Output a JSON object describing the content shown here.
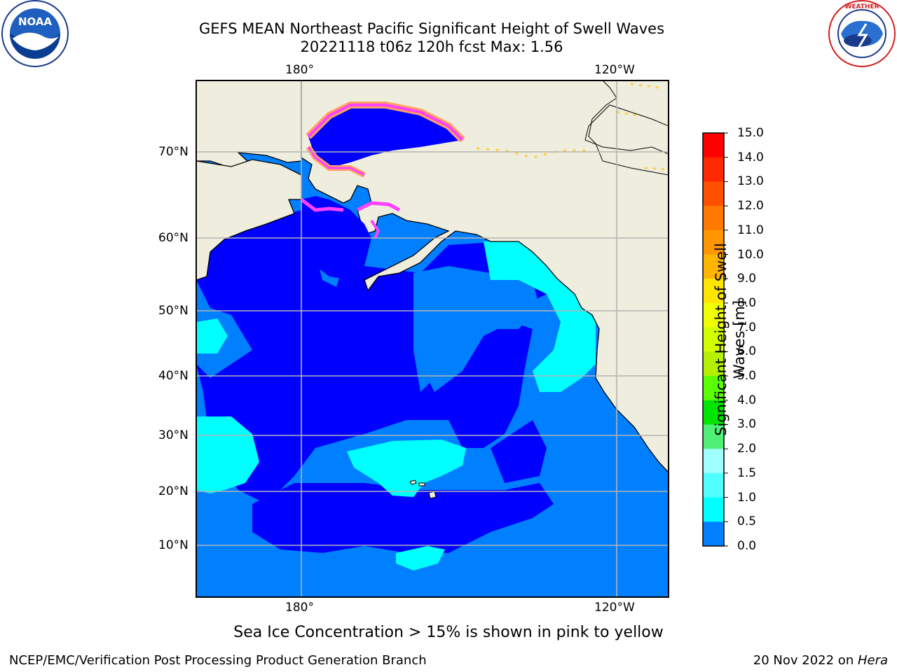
{
  "header": {
    "title_line1": "GEFS MEAN Northeast Pacific Significant Height of Swell Waves",
    "title_line2": "20221118 t06z 120h fcst   Max: 1.56"
  },
  "logos": {
    "left": {
      "name": "noaa-logo",
      "text": "NOAA",
      "ring_text": "NATIONAL OCEANIC AND ATMOSPHERIC ADMINISTRATION · U.S. DEPARTMENT OF COMMERCE"
    },
    "right": {
      "name": "nws-logo",
      "ring_text": "NATIONAL WEATHER SERVICE"
    }
  },
  "map": {
    "lon_ticks_top": [
      "180°",
      "120°W"
    ],
    "lon_ticks_bottom": [
      "180°",
      "120°W"
    ],
    "lat_ticks": [
      "70°N",
      "60°N",
      "50°N",
      "40°N",
      "30°N",
      "20°N",
      "10°N"
    ],
    "colors": {
      "land": "#efedde",
      "band_0_0_5": "#0000ff",
      "band_0_5_1_0": "#0080ff",
      "band_1_0_1_5": "#00ffff",
      "ice_pink": "#ff40ff",
      "ice_orange": "#ffa060",
      "ice_yellow": "#ffd040",
      "grid": "#b4b4b4"
    }
  },
  "colorbar": {
    "label": "Significant Height of Swell Waves [m]",
    "ticks": [
      "15.0",
      "14.0",
      "13.0",
      "12.0",
      "11.0",
      "10.0",
      "9.0",
      "8.0",
      "7.0",
      "6.0",
      "5.0",
      "4.0",
      "3.0",
      "2.0",
      "1.5",
      "1.0",
      "0.5",
      "0.0"
    ],
    "colors": [
      "#ff0000",
      "#ff2800",
      "#ff5000",
      "#ff7800",
      "#ff9600",
      "#ffb400",
      "#ffe600",
      "#f0ff00",
      "#d2ff00",
      "#b4f000",
      "#5aff00",
      "#00e600",
      "#50f078",
      "#a0ffff",
      "#50ffff",
      "#00ffff",
      "#0080ff",
      "#0000ff"
    ]
  },
  "note": "Sea Ice Concentration > 15% is shown in pink to yellow",
  "footer": {
    "left": "NCEP/EMC/Verification Post Processing Product Generation Branch",
    "right_prefix": "20 Nov 2022 on ",
    "right_machine": "Hera"
  }
}
